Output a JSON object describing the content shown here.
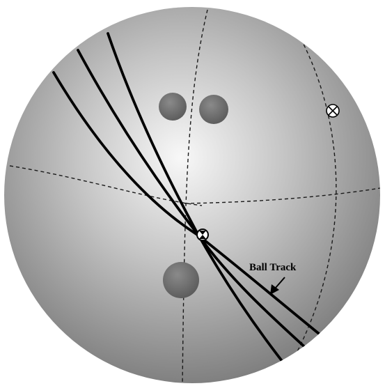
{
  "diagram": {
    "annotation_label": "Ball Track",
    "colors": {
      "ball_highlight": "#f8f8f8",
      "ball_mid": "#c4c4c4",
      "ball_shadow": "#7c7c7c",
      "finger_hole": "#6f6f6f",
      "thumb_hole": "#6a6a6a",
      "track_line": "#000000",
      "grid_line": "#1a1a1a",
      "marker_fill": "#ffffff",
      "marker_stroke": "#000000",
      "page_background": "#ffffff"
    },
    "icons": {
      "pin_marker": "circle-x-marker",
      "pap_marker": "hourglass-circle-marker"
    }
  }
}
